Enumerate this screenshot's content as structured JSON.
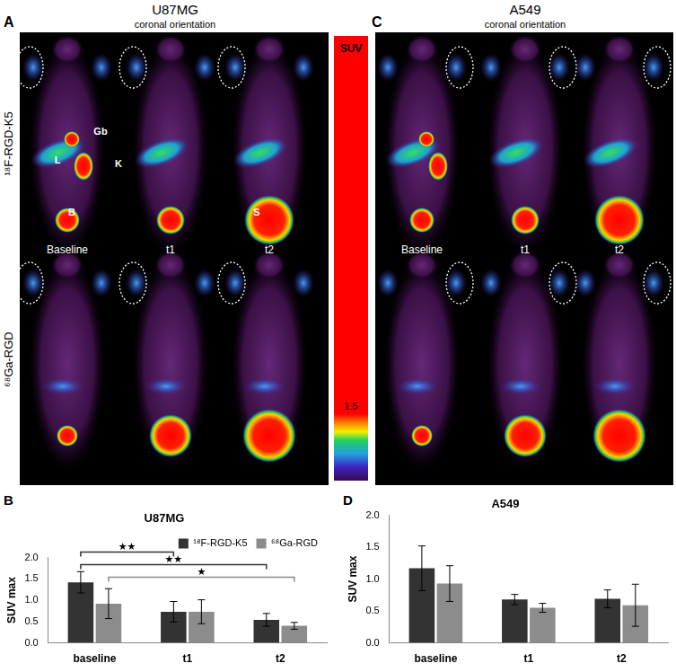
{
  "images": {
    "rows": [
      "¹⁸F-RGD-K5",
      "⁶⁸Ga-RGD"
    ],
    "colorbar": {
      "title": "SUV",
      "ticks": [
        1.5
      ]
    },
    "panels": [
      {
        "letter": "A",
        "title": "U87MG",
        "subtitle": "coronal orientation",
        "columns": [
          "Baseline",
          "t1",
          "t2"
        ],
        "organ_labels": [
          "Gb",
          "L",
          "K",
          "B",
          "S"
        ]
      },
      {
        "letter": "C",
        "title": "A549",
        "subtitle": "coronal orientation",
        "columns": [
          "Baseline",
          "t1",
          "t2"
        ],
        "organ_labels": []
      }
    ]
  },
  "chart_data": [
    {
      "type": "bar",
      "panel": "B",
      "title": "U87MG",
      "y_label": "SUV max",
      "categories": [
        "baseline",
        "t1",
        "t2"
      ],
      "series": [
        {
          "name": "¹⁸F-RGD-K5",
          "color": "#333333",
          "values": [
            1.42,
            0.73,
            0.54
          ],
          "errors": [
            0.25,
            0.24,
            0.15
          ]
        },
        {
          "name": "⁶⁸Ga-RGD",
          "color": "#8c8c8c",
          "values": [
            0.92,
            0.73,
            0.4
          ],
          "errors": [
            0.35,
            0.28,
            0.08
          ]
        }
      ],
      "annotations": [
        {
          "series": "¹⁸F-RGD-K5",
          "from": "baseline",
          "to": "t1",
          "text": "★★"
        },
        {
          "series": "¹⁸F-RGD-K5",
          "from": "baseline",
          "to": "t2",
          "text": "★★"
        },
        {
          "series": "⁶⁸Ga-RGD",
          "from": "baseline",
          "to": "t2",
          "text": "★"
        }
      ],
      "ylim": [
        0,
        2
      ],
      "yticks": [
        {
          "value": 0,
          "label": "0.0"
        },
        0.5,
        {
          "value": 1,
          "label": "1.0"
        },
        1.5,
        {
          "value": 2,
          "label": "2.0"
        }
      ],
      "grid": false,
      "legend": "top right"
    },
    {
      "type": "bar",
      "panel": "D",
      "title": "A549",
      "y_label": "SUV max",
      "categories": [
        "baseline",
        "t1",
        "t2"
      ],
      "series": [
        {
          "name": "¹⁸F-RGD-K5",
          "color": "#333333",
          "values": [
            1.17,
            0.68,
            0.69
          ],
          "errors": [
            0.35,
            0.08,
            0.14
          ]
        },
        {
          "name": "⁶⁸Ga-RGD",
          "color": "#8c8c8c",
          "values": [
            0.93,
            0.55,
            0.59
          ],
          "errors": [
            0.28,
            0.07,
            0.33
          ]
        }
      ],
      "ylim": [
        0,
        2
      ],
      "yticks": [
        {
          "value": 0,
          "label": "0.0"
        },
        0.5,
        {
          "value": 1,
          "label": "1.0"
        },
        1.5,
        {
          "value": 2,
          "label": "2.0"
        }
      ],
      "grid": false
    }
  ]
}
